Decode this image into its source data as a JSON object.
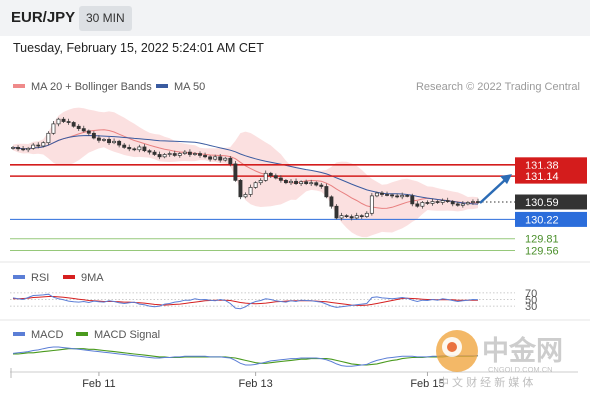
{
  "header": {
    "pair": "EUR/JPY",
    "timeframe": "30 MIN"
  },
  "datetime": "Tuesday, February 15, 2022 5:24:01 AM CET",
  "copyright": "Research © 2022 Trading Central",
  "watermark": {
    "brand": "中金网",
    "domain": "CNGOLD.COM.CN",
    "tagline": "中 文 财 经 新 媒 体"
  },
  "colors": {
    "bollinger": "#f4a6a6",
    "ma20": "#e88080",
    "ma50": "#3a5ba0",
    "resistance": "#d41c1c",
    "support_blue": "#2b6ddb",
    "support_green": "#7dbb5a",
    "current": "#333333",
    "rsi": "#5b7ed6",
    "rsi_ma": "#d62020",
    "macd": "#5b7ed6",
    "macd_signal": "#4a9a1e",
    "arrow": "#2b6bb5"
  },
  "chart_data": [
    {
      "type": "candlestick",
      "panel": "price",
      "legend": [
        {
          "name": "MA 20 + Bollinger Bands",
          "color": "#ef8a8a"
        },
        {
          "name": "MA 50",
          "color": "#3a5ba0"
        }
      ],
      "ylim": [
        129.4,
        132.8
      ],
      "levels": [
        {
          "value": 131.38,
          "label": "131.38",
          "kind": "resistance",
          "color": "#d41c1c"
        },
        {
          "value": 131.14,
          "label": "131.14",
          "kind": "resistance",
          "color": "#d41c1c"
        },
        {
          "value": 130.59,
          "label": "130.59",
          "kind": "current",
          "color": "#333333"
        },
        {
          "value": 130.22,
          "label": "130.22",
          "kind": "support",
          "color": "#2b6ddb"
        },
        {
          "value": 129.81,
          "label": "129.81",
          "kind": "support",
          "color": "#7dbb5a"
        },
        {
          "value": 129.56,
          "label": "129.56",
          "kind": "support",
          "color": "#7dbb5a"
        }
      ],
      "close": [
        131.75,
        131.72,
        131.7,
        131.73,
        131.8,
        131.78,
        131.85,
        132.05,
        132.25,
        132.35,
        132.3,
        132.28,
        132.2,
        132.15,
        132.1,
        132.05,
        131.95,
        131.9,
        131.92,
        131.85,
        131.88,
        131.8,
        131.75,
        131.72,
        131.7,
        131.76,
        131.68,
        131.65,
        131.6,
        131.55,
        131.6,
        131.62,
        131.58,
        131.62,
        131.65,
        131.6,
        131.62,
        131.58,
        131.55,
        131.5,
        131.55,
        131.48,
        131.52,
        131.4,
        131.05,
        130.7,
        130.75,
        130.9,
        131.0,
        131.05,
        131.2,
        131.15,
        131.1,
        131.05,
        131.0,
        131.03,
        130.98,
        131.02,
        130.98,
        131.0,
        130.95,
        130.92,
        130.7,
        130.5,
        130.25,
        130.3,
        130.28,
        130.25,
        130.3,
        130.28,
        130.35,
        130.72,
        130.78,
        130.75,
        130.74,
        130.72,
        130.7,
        130.73,
        130.72,
        130.55,
        130.5,
        130.58,
        130.56,
        130.6,
        130.58,
        130.62,
        130.6,
        130.55,
        130.52,
        130.55,
        130.58,
        130.6,
        130.58
      ],
      "current_marker": 130.59,
      "arrow_target": 131.14,
      "x_ticks": [
        {
          "label": "Feb 11",
          "index": 17
        },
        {
          "label": "Feb 13",
          "index": 48
        },
        {
          "label": "Feb 15",
          "index": 82
        }
      ]
    },
    {
      "type": "line",
      "panel": "rsi",
      "legend": [
        {
          "name": "RSI",
          "color": "#5b7ed6"
        },
        {
          "name": "9MA",
          "color": "#d62020"
        }
      ],
      "levels": [
        70,
        50,
        30
      ],
      "level_labels": [
        "70",
        "50",
        "30"
      ],
      "ylim": [
        0,
        100
      ],
      "series": [
        {
          "name": "RSI",
          "values": [
            55,
            52,
            50,
            56,
            62,
            63,
            64,
            66,
            57,
            52,
            49,
            45,
            43,
            42,
            44,
            41,
            45,
            43,
            42,
            46,
            44,
            40,
            38,
            40,
            42,
            36,
            34,
            30,
            28,
            30,
            36,
            38,
            42,
            44,
            48,
            48,
            52,
            49,
            50,
            48,
            46,
            50,
            47,
            38,
            24,
            22,
            28,
            38,
            44,
            47,
            52,
            50,
            46,
            44,
            42,
            46,
            44,
            48,
            47,
            46,
            44,
            42,
            36,
            30,
            26,
            28,
            30,
            32,
            34,
            36,
            38,
            56,
            58,
            55,
            54,
            52,
            54,
            56,
            54,
            48,
            44,
            48,
            47,
            50,
            48,
            52,
            50,
            47,
            44,
            46,
            48,
            50,
            49
          ]
        },
        {
          "name": "9MA",
          "values": [
            52,
            52,
            53,
            54,
            56,
            57,
            58,
            59,
            59,
            58,
            57,
            55,
            53,
            51,
            49,
            47,
            46,
            45,
            44,
            44,
            44,
            43,
            42,
            42,
            41,
            40,
            39,
            37,
            35,
            34,
            33,
            34,
            35,
            36,
            38,
            40,
            42,
            44,
            46,
            47,
            48,
            48,
            48,
            47,
            44,
            41,
            39,
            38,
            37,
            38,
            39,
            41,
            43,
            44,
            45,
            46,
            46,
            46,
            46,
            46,
            45,
            44,
            43,
            41,
            39,
            37,
            35,
            33,
            32,
            32,
            33,
            35,
            38,
            41,
            44,
            47,
            50,
            53,
            54,
            53,
            52,
            51,
            50,
            50,
            49,
            49,
            49,
            49,
            48,
            48,
            48,
            48,
            48
          ]
        }
      ]
    },
    {
      "type": "line",
      "panel": "macd",
      "legend": [
        {
          "name": "MACD",
          "color": "#5b7ed6"
        },
        {
          "name": "MACD Signal",
          "color": "#4a9a1e"
        }
      ],
      "ylim": [
        -0.3,
        0.25
      ],
      "series": [
        {
          "name": "MACD",
          "values": [
            0.02,
            0.03,
            0.04,
            0.05,
            0.07,
            0.08,
            0.1,
            0.12,
            0.13,
            0.13,
            0.12,
            0.11,
            0.1,
            0.09,
            0.08,
            0.07,
            0.06,
            0.05,
            0.04,
            0.03,
            0.02,
            0.01,
            0.0,
            -0.01,
            -0.02,
            -0.03,
            -0.04,
            -0.05,
            -0.06,
            -0.06,
            -0.05,
            -0.05,
            -0.04,
            -0.04,
            -0.03,
            -0.03,
            -0.03,
            -0.03,
            -0.03,
            -0.04,
            -0.04,
            -0.04,
            -0.05,
            -0.06,
            -0.1,
            -0.15,
            -0.18,
            -0.18,
            -0.17,
            -0.15,
            -0.13,
            -0.11,
            -0.1,
            -0.09,
            -0.08,
            -0.07,
            -0.07,
            -0.06,
            -0.06,
            -0.06,
            -0.06,
            -0.07,
            -0.09,
            -0.12,
            -0.16,
            -0.19,
            -0.2,
            -0.2,
            -0.19,
            -0.18,
            -0.17,
            -0.13,
            -0.1,
            -0.08,
            -0.06,
            -0.05,
            -0.04,
            -0.03,
            -0.03,
            -0.03,
            -0.04,
            -0.04,
            -0.04,
            -0.03,
            -0.03,
            -0.02,
            -0.02,
            -0.02,
            -0.02,
            -0.02,
            -0.02,
            -0.02,
            -0.02
          ]
        },
        {
          "name": "MACD Signal",
          "values": [
            0.01,
            0.01,
            0.02,
            0.03,
            0.03,
            0.04,
            0.05,
            0.06,
            0.07,
            0.08,
            0.09,
            0.1,
            0.1,
            0.1,
            0.1,
            0.09,
            0.09,
            0.08,
            0.07,
            0.06,
            0.05,
            0.04,
            0.03,
            0.02,
            0.01,
            0.0,
            -0.01,
            -0.02,
            -0.03,
            -0.04,
            -0.04,
            -0.05,
            -0.05,
            -0.05,
            -0.04,
            -0.04,
            -0.04,
            -0.04,
            -0.04,
            -0.04,
            -0.04,
            -0.04,
            -0.04,
            -0.05,
            -0.06,
            -0.08,
            -0.1,
            -0.12,
            -0.14,
            -0.15,
            -0.15,
            -0.14,
            -0.13,
            -0.12,
            -0.11,
            -0.1,
            -0.09,
            -0.08,
            -0.08,
            -0.07,
            -0.07,
            -0.07,
            -0.07,
            -0.08,
            -0.1,
            -0.12,
            -0.14,
            -0.16,
            -0.17,
            -0.18,
            -0.18,
            -0.17,
            -0.16,
            -0.14,
            -0.12,
            -0.1,
            -0.09,
            -0.07,
            -0.06,
            -0.05,
            -0.05,
            -0.05,
            -0.04,
            -0.04,
            -0.04,
            -0.04,
            -0.03,
            -0.03,
            -0.03,
            -0.03,
            -0.03,
            -0.03,
            -0.02
          ]
        }
      ]
    }
  ]
}
